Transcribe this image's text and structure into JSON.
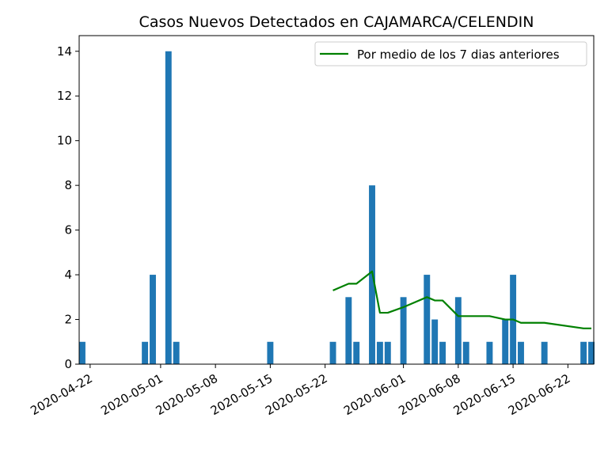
{
  "chart_data": {
    "type": "bar",
    "title": "Casos Nuevos Detectados en CAJAMARCA/CELENDIN",
    "xlabel": "",
    "ylabel": "",
    "x_range": [
      "2020-04-21",
      "2020-06-25"
    ],
    "ylim": [
      0,
      14.7
    ],
    "y_ticks": [
      0,
      2,
      4,
      6,
      8,
      10,
      12,
      14
    ],
    "x_tick_labels": [
      "2020-04-22",
      "2020-05-01",
      "2020-05-08",
      "2020-05-15",
      "2020-05-22",
      "2020-06-01",
      "2020-06-08",
      "2020-06-15",
      "2020-06-22"
    ],
    "legend_position": "top-right",
    "grid": false,
    "colors": {
      "bars": "#1f77b4",
      "line": "#008000"
    },
    "series": [
      {
        "type": "bar",
        "data": [
          {
            "date": "2020-04-21",
            "value": 1
          },
          {
            "date": "2020-04-29",
            "value": 1
          },
          {
            "date": "2020-04-30",
            "value": 4
          },
          {
            "date": "2020-05-02",
            "value": 14
          },
          {
            "date": "2020-05-03",
            "value": 1
          },
          {
            "date": "2020-05-15",
            "value": 1
          },
          {
            "date": "2020-05-23",
            "value": 1
          },
          {
            "date": "2020-05-25",
            "value": 3
          },
          {
            "date": "2020-05-26",
            "value": 1
          },
          {
            "date": "2020-05-28",
            "value": 8
          },
          {
            "date": "2020-05-29",
            "value": 1
          },
          {
            "date": "2020-05-30",
            "value": 1
          },
          {
            "date": "2020-06-01",
            "value": 3
          },
          {
            "date": "2020-06-04",
            "value": 4
          },
          {
            "date": "2020-06-05",
            "value": 2
          },
          {
            "date": "2020-06-06",
            "value": 1
          },
          {
            "date": "2020-06-08",
            "value": 3
          },
          {
            "date": "2020-06-09",
            "value": 1
          },
          {
            "date": "2020-06-12",
            "value": 1
          },
          {
            "date": "2020-06-14",
            "value": 2
          },
          {
            "date": "2020-06-15",
            "value": 4
          },
          {
            "date": "2020-06-16",
            "value": 1
          },
          {
            "date": "2020-06-19",
            "value": 1
          },
          {
            "date": "2020-06-24",
            "value": 1
          },
          {
            "date": "2020-06-25",
            "value": 1
          }
        ]
      },
      {
        "type": "line",
        "name": "Por medio de los 7 dias anteriores",
        "data": [
          {
            "date": "2020-05-23",
            "value": 3.3
          },
          {
            "date": "2020-05-25",
            "value": 3.6
          },
          {
            "date": "2020-05-26",
            "value": 3.6
          },
          {
            "date": "2020-05-28",
            "value": 4.15
          },
          {
            "date": "2020-05-29",
            "value": 2.3
          },
          {
            "date": "2020-05-30",
            "value": 2.3
          },
          {
            "date": "2020-06-01",
            "value": 2.55
          },
          {
            "date": "2020-06-04",
            "value": 3.0
          },
          {
            "date": "2020-06-05",
            "value": 2.85
          },
          {
            "date": "2020-06-06",
            "value": 2.85
          },
          {
            "date": "2020-06-08",
            "value": 2.15
          },
          {
            "date": "2020-06-09",
            "value": 2.15
          },
          {
            "date": "2020-06-12",
            "value": 2.15
          },
          {
            "date": "2020-06-14",
            "value": 2.0
          },
          {
            "date": "2020-06-15",
            "value": 2.0
          },
          {
            "date": "2020-06-16",
            "value": 1.85
          },
          {
            "date": "2020-06-19",
            "value": 1.85
          },
          {
            "date": "2020-06-24",
            "value": 1.6
          },
          {
            "date": "2020-06-25",
            "value": 1.6
          }
        ]
      }
    ]
  }
}
